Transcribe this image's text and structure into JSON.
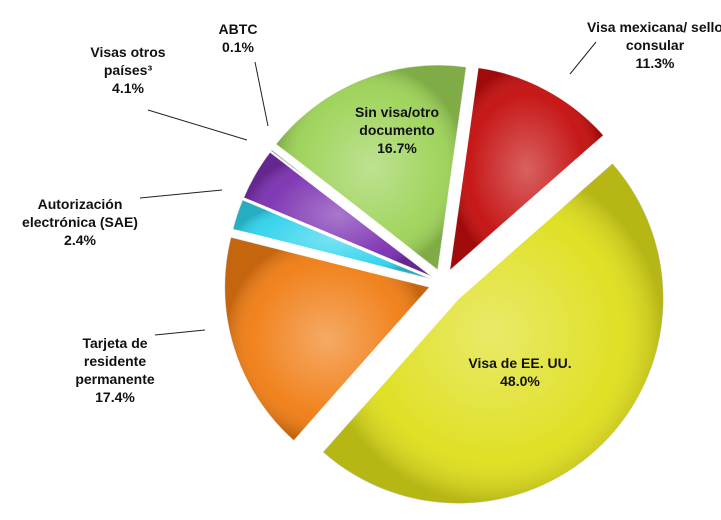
{
  "chart_data": {
    "type": "pie",
    "categories": [
      "Visa mexicana/ sello consular",
      "Visa de EE. UU.",
      "Tarjeta de residente permanente",
      "Autorización electrónica (SAE)",
      "Visas otros países³",
      "ABTC",
      "Sin visa/otro documento"
    ],
    "values": [
      11.3,
      48.0,
      17.4,
      2.4,
      4.1,
      0.1,
      16.7
    ],
    "value_labels": [
      "11.3%",
      "48.0%",
      "17.4%",
      "2.4%",
      "4.1%",
      "0.1%",
      "16.7%"
    ],
    "colors": [
      "#c40c0c",
      "#dede1a",
      "#f07c12",
      "#2fd3ec",
      "#7a2fb0",
      "#3d5fc4",
      "#9bd255"
    ]
  }
}
